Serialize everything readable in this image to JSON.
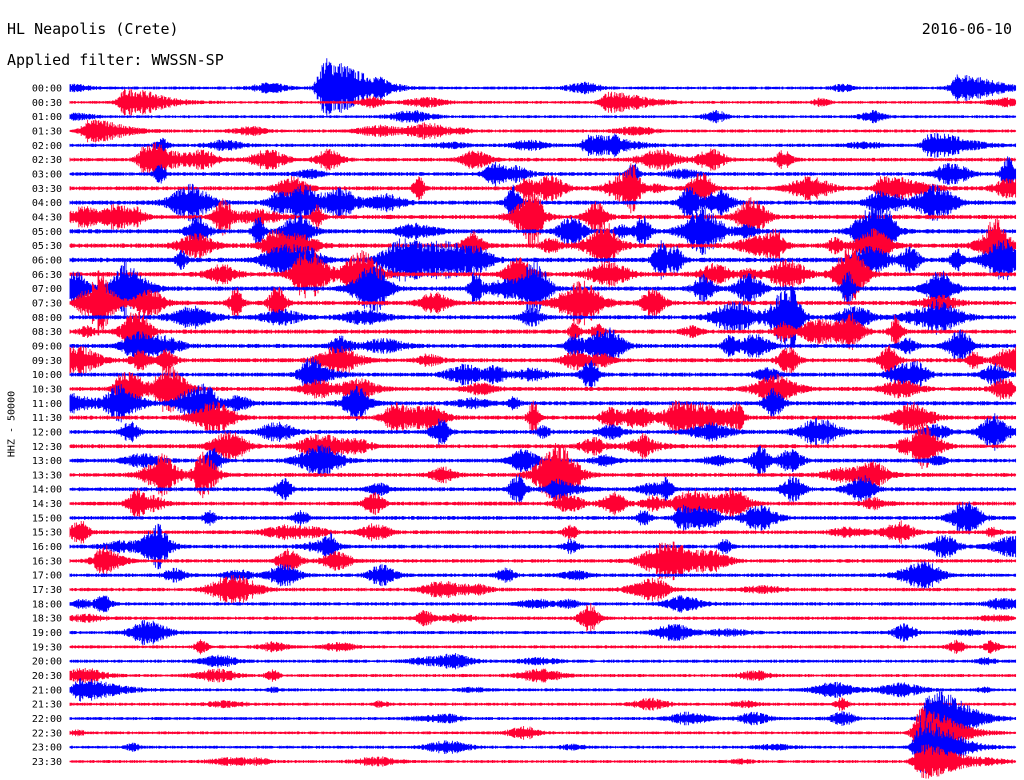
{
  "header": {
    "station": "HL Neapolis (Crete)",
    "filter": "Applied filter: WWSSN-SP",
    "date": "2016-06-10"
  },
  "chart_data": {
    "type": "line",
    "subtype": "helicorder",
    "title": "HL Neapolis (Crete)",
    "subtitle": "Applied filter: WWSSN-SP",
    "date": "2016-06-10",
    "ylabel": "HHZ - 50000",
    "row_labels": [
      "00:00",
      "00:30",
      "01:00",
      "01:30",
      "02:00",
      "02:30",
      "03:00",
      "03:30",
      "04:00",
      "04:30",
      "05:00",
      "05:30",
      "06:00",
      "06:30",
      "07:00",
      "07:30",
      "08:00",
      "08:30",
      "09:00",
      "09:30",
      "10:00",
      "10:30",
      "11:00",
      "11:30",
      "12:00",
      "12:30",
      "13:00",
      "13:30",
      "14:00",
      "14:30",
      "15:00",
      "15:30",
      "16:00",
      "16:30",
      "17:00",
      "17:30",
      "18:00",
      "18:30",
      "19:00",
      "19:30",
      "20:00",
      "20:30",
      "21:00",
      "21:30",
      "22:00",
      "22:30",
      "23:00",
      "23:30"
    ],
    "row_activity": [
      0.5,
      0.4,
      0.45,
      0.6,
      0.7,
      0.9,
      1.0,
      1.1,
      1.3,
      1.35,
      1.4,
      1.45,
      1.5,
      1.45,
      1.4,
      1.35,
      1.3,
      1.25,
      1.2,
      1.2,
      1.15,
      1.2,
      1.25,
      1.2,
      1.15,
      1.1,
      1.1,
      1.15,
      1.1,
      1.05,
      1.0,
      0.95,
      0.95,
      0.9,
      0.85,
      0.8,
      0.75,
      0.7,
      0.65,
      0.6,
      0.6,
      0.55,
      0.55,
      0.5,
      0.5,
      0.45,
      0.45,
      0.5
    ],
    "events": [
      {
        "row": 0,
        "x": 0.27,
        "amp": 4.5
      },
      {
        "row": 0,
        "x": 0.94,
        "amp": 2.0
      },
      {
        "row": 1,
        "x": 0.06,
        "amp": 2.0
      },
      {
        "row": 1,
        "x": 0.57,
        "amp": 1.5
      },
      {
        "row": 3,
        "x": 0.02,
        "amp": 1.6
      },
      {
        "row": 4,
        "x": 0.55,
        "amp": 1.6
      },
      {
        "row": 4,
        "x": 0.91,
        "amp": 1.8
      },
      {
        "row": 5,
        "x": 0.08,
        "amp": 1.8
      },
      {
        "row": 7,
        "x": 0.86,
        "amp": 1.8
      },
      {
        "row": 42,
        "x": 0.01,
        "amp": 1.6
      },
      {
        "row": 44,
        "x": 0.91,
        "amp": 4.5
      },
      {
        "row": 45,
        "x": 0.9,
        "amp": 3.5
      },
      {
        "row": 46,
        "x": 0.9,
        "amp": 4.0
      },
      {
        "row": 47,
        "x": 0.9,
        "amp": 2.5
      }
    ],
    "colors": {
      "odd_rows": "#0000ff",
      "even_rows": "#ff0033"
    },
    "grid": false
  }
}
